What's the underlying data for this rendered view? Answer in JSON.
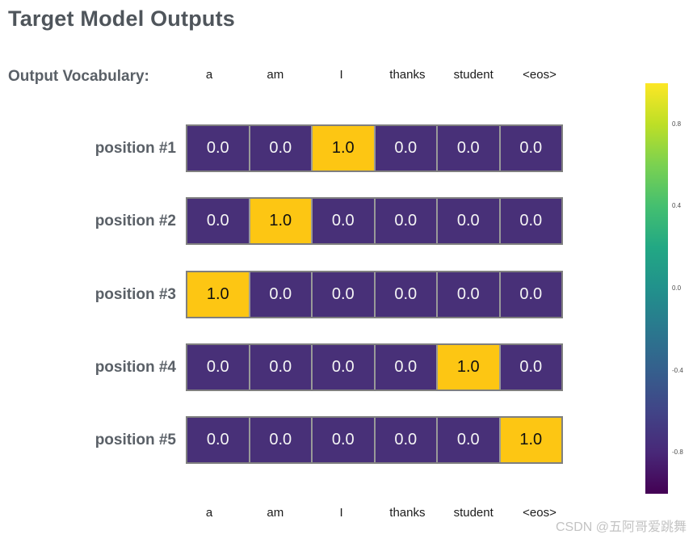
{
  "title": "Target Model Outputs",
  "vocab": {
    "heading": "Output Vocabulary:",
    "tokens": [
      "a",
      "am",
      "I",
      "thanks",
      "student",
      "<eos>"
    ]
  },
  "rows": [
    {
      "label": "position #1",
      "cells": [
        "0.0",
        "0.0",
        "1.0",
        "0.0",
        "0.0",
        "0.0"
      ]
    },
    {
      "label": "position #2",
      "cells": [
        "0.0",
        "1.0",
        "0.0",
        "0.0",
        "0.0",
        "0.0"
      ]
    },
    {
      "label": "position #3",
      "cells": [
        "1.0",
        "0.0",
        "0.0",
        "0.0",
        "0.0",
        "0.0"
      ]
    },
    {
      "label": "position #4",
      "cells": [
        "0.0",
        "0.0",
        "0.0",
        "0.0",
        "1.0",
        "0.0"
      ]
    },
    {
      "label": "position #5",
      "cells": [
        "0.0",
        "0.0",
        "0.0",
        "0.0",
        "0.0",
        "1.0"
      ]
    }
  ],
  "colorbar": {
    "tick_labels": [
      "0.8",
      "0.4",
      "0.0",
      "-0.4",
      "-0.8"
    ],
    "range_min": -1.0,
    "range_max": 1.0,
    "colormap": "viridis",
    "gradient_top_to_bottom": [
      "#fde725",
      "#bddf26",
      "#7ad151",
      "#44bf70",
      "#22a884",
      "#21918c",
      "#2a788e",
      "#355f8d",
      "#414487",
      "#482878",
      "#440154"
    ]
  },
  "watermark": "CSDN @五阿哥爱跳舞",
  "colors": {
    "cell-low": "#483078",
    "cell-high": "#fdc613",
    "cell-text-low": "#f5f5f5",
    "cell-text-high": "#101010",
    "row-border": "#7f7f7f",
    "cell-separator": "#999999",
    "title-text": "#4f555b",
    "label-text": "#5a6067",
    "token-text": "#1b1b1b",
    "tick-text": "#4d4d4d",
    "watermark-text": "#c3c3c3"
  },
  "chart_data": {
    "type": "heatmap",
    "title": "Target Model Outputs",
    "x_categories": [
      "a",
      "am",
      "I",
      "thanks",
      "student",
      "<eos>"
    ],
    "y_categories": [
      "position #1",
      "position #2",
      "position #3",
      "position #4",
      "position #5"
    ],
    "values": [
      [
        0.0,
        0.0,
        1.0,
        0.0,
        0.0,
        0.0
      ],
      [
        0.0,
        1.0,
        0.0,
        0.0,
        0.0,
        0.0
      ],
      [
        1.0,
        0.0,
        0.0,
        0.0,
        0.0,
        0.0
      ],
      [
        0.0,
        0.0,
        0.0,
        0.0,
        1.0,
        0.0
      ],
      [
        0.0,
        0.0,
        0.0,
        0.0,
        0.0,
        1.0
      ]
    ],
    "cell_labels_shown": true,
    "colormap": "viridis",
    "colorbar_ticks": [
      0.8,
      0.4,
      0.0,
      -0.4,
      -0.8
    ],
    "colorbar_range": [
      -1.0,
      1.0
    ],
    "legend_position": "right",
    "x_axis_shown_top_and_bottom": true,
    "grid": false
  }
}
